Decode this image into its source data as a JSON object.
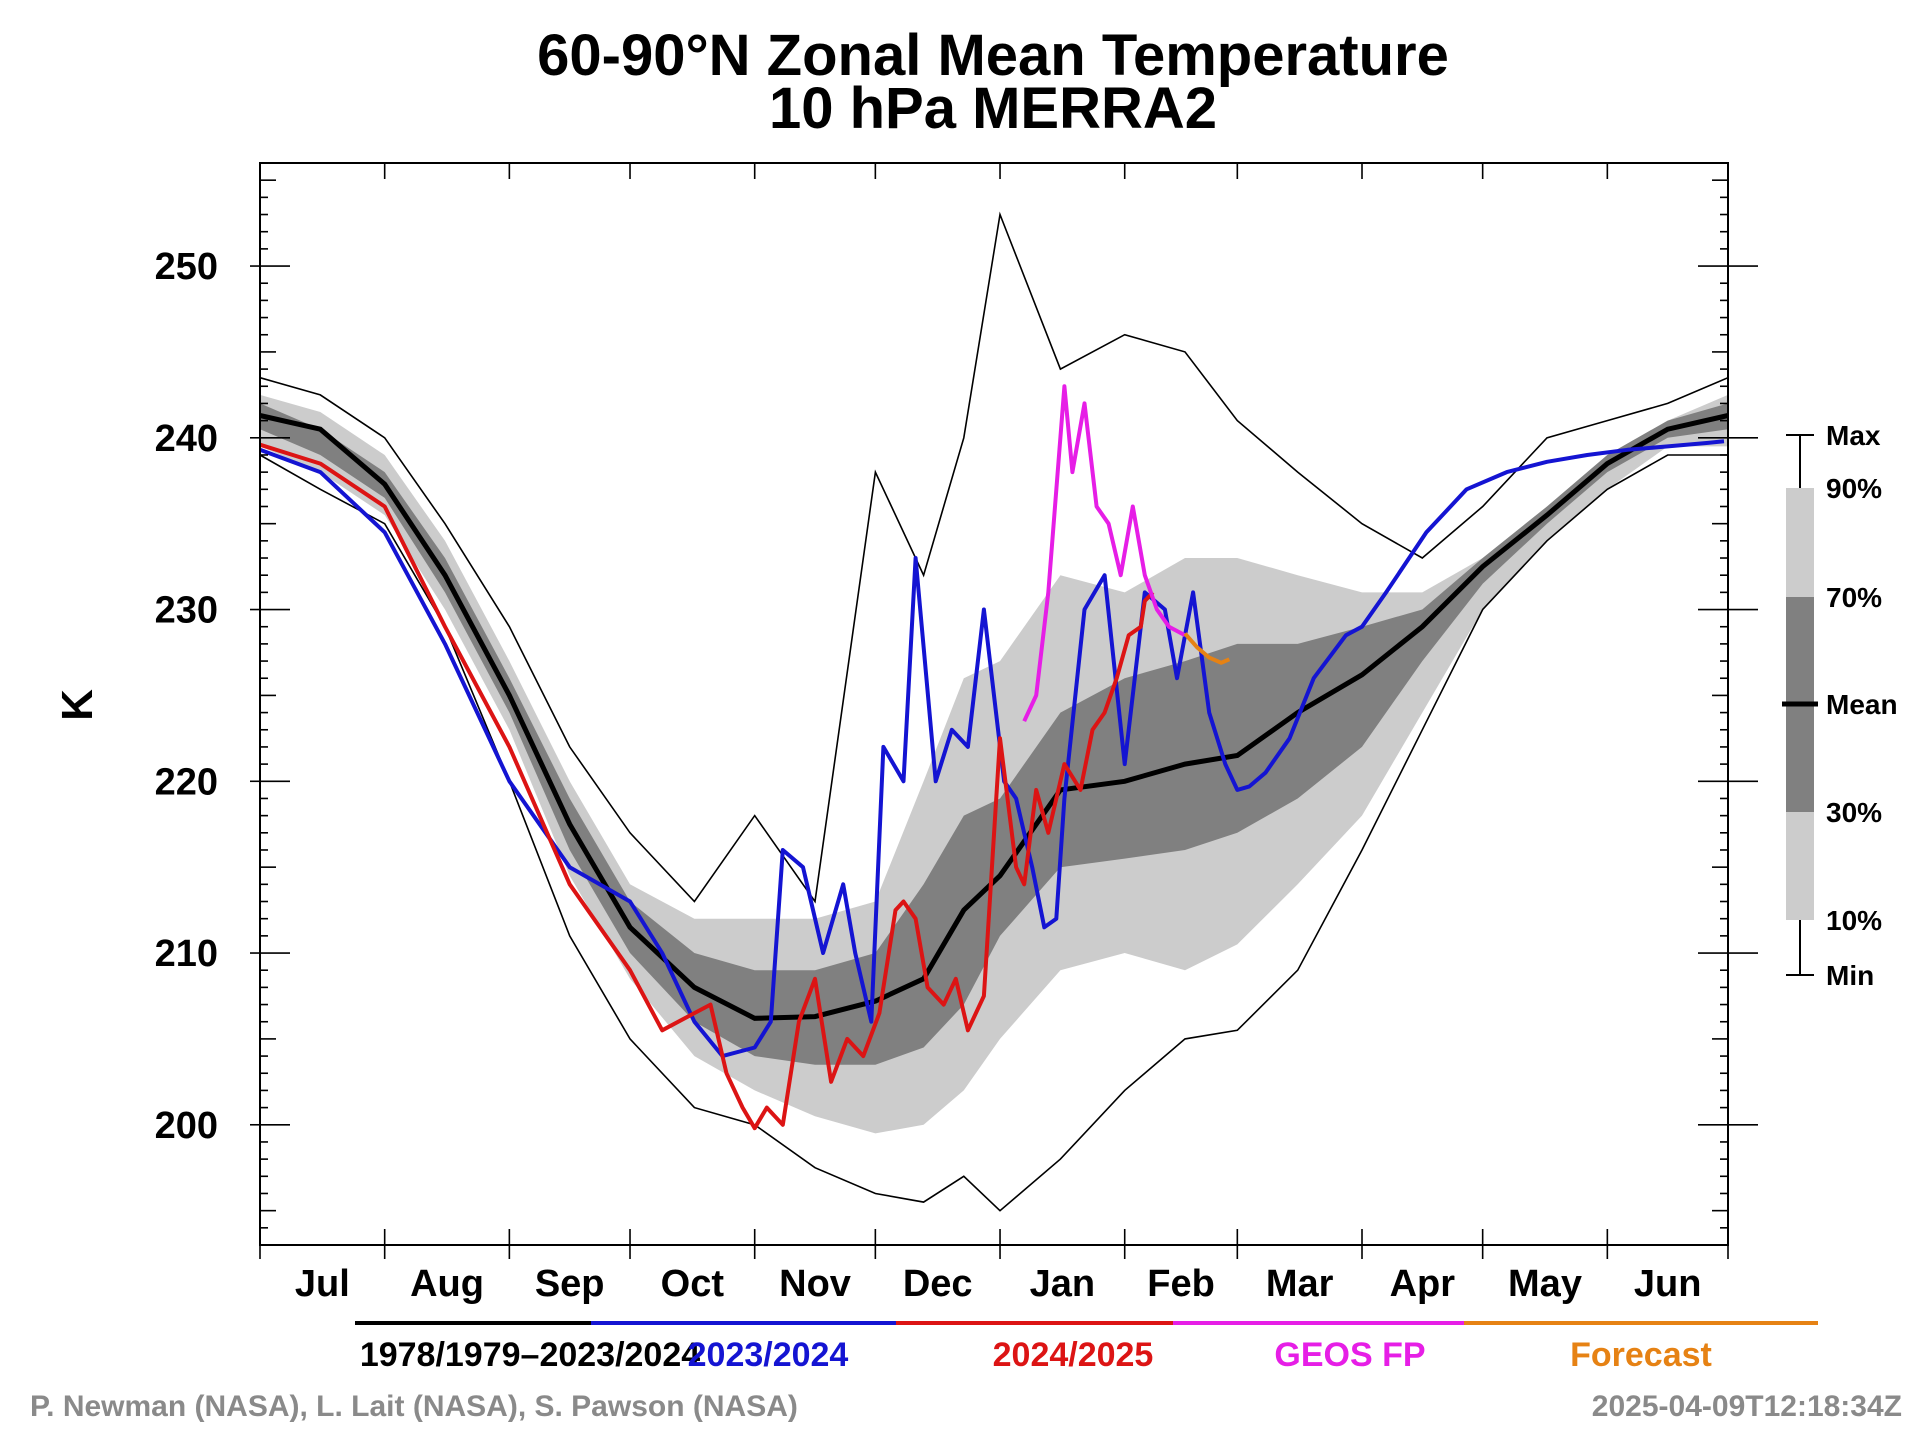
{
  "chart_data": {
    "type": "line",
    "title": "60-90°N Zonal Mean Temperature",
    "subtitle": "10 hPa   MERRA2",
    "ylabel": "K",
    "xlabel": "",
    "ylim": [
      193,
      256
    ],
    "yticks": [
      200,
      210,
      220,
      230,
      240,
      250
    ],
    "xlim": [
      0,
      365
    ],
    "x_units": "days since 1 Jul",
    "months": [
      "Jul",
      "Aug",
      "Sep",
      "Oct",
      "Nov",
      "Dec",
      "Jan",
      "Feb",
      "Mar",
      "Apr",
      "May",
      "Jun"
    ],
    "month_starts": [
      0,
      31,
      62,
      92,
      123,
      153,
      184,
      215,
      243,
      274,
      304,
      335,
      365
    ],
    "climatology": {
      "x": [
        0,
        15,
        31,
        46,
        62,
        77,
        92,
        108,
        123,
        138,
        153,
        165,
        175,
        184,
        199,
        215,
        230,
        243,
        258,
        274,
        289,
        304,
        320,
        335,
        350,
        365
      ],
      "max": [
        243.5,
        242.5,
        240,
        235,
        229,
        222,
        217,
        213,
        218,
        213,
        238,
        232,
        240,
        253,
        244,
        246,
        245,
        241,
        238,
        235,
        233,
        236,
        240,
        241,
        242,
        243.5
      ],
      "p90": [
        242.5,
        241.5,
        239,
        234,
        227,
        220,
        214,
        212,
        212,
        212,
        213,
        220,
        226,
        227,
        232,
        231,
        233,
        233,
        232,
        231,
        231,
        233,
        236,
        239,
        241,
        242.5
      ],
      "p70": [
        242,
        240.5,
        238,
        233,
        226,
        219,
        213,
        210,
        209,
        209,
        210,
        214,
        218,
        219,
        224,
        226,
        227,
        228,
        228,
        229,
        230,
        233,
        236,
        239,
        241,
        242
      ],
      "mean": [
        241.3,
        240.5,
        237.3,
        232,
        225,
        217.5,
        211.5,
        208,
        206.2,
        206.3,
        207.2,
        208.5,
        212.5,
        214.5,
        219.5,
        220,
        221,
        221.5,
        224,
        226.2,
        229,
        232.5,
        235.5,
        238.5,
        240.5,
        241.3
      ],
      "p30": [
        240.5,
        239,
        236.5,
        231,
        224,
        216,
        210,
        206,
        204,
        203.5,
        203.5,
        204.5,
        207,
        211,
        215,
        215.5,
        216,
        217,
        219,
        222,
        227,
        231.5,
        235,
        238,
        240,
        240.5
      ],
      "p10": [
        239.5,
        238,
        235.5,
        230,
        223,
        214.5,
        208.5,
        204,
        202,
        200.5,
        199.5,
        200,
        202,
        205,
        209,
        210,
        209,
        210.5,
        214,
        218,
        224,
        230,
        234,
        237,
        239.5,
        239.5
      ],
      "min": [
        239,
        237,
        235,
        229,
        220,
        211,
        205,
        201,
        200,
        197.5,
        196,
        195.5,
        197,
        195,
        198,
        202,
        205,
        205.5,
        209,
        216,
        223,
        230,
        234,
        237,
        239,
        239
      ]
    },
    "series": [
      {
        "name": "1978/1979–2023/2024",
        "color": "#000000"
      },
      {
        "name": "2023/2024",
        "color": "#1414d2",
        "x": [
          0,
          15,
          31,
          46,
          62,
          77,
          92,
          100,
          108,
          115,
          123,
          127,
          130,
          135,
          140,
          145,
          148,
          152,
          155,
          160,
          163,
          168,
          172,
          176,
          180,
          185,
          188,
          192,
          195,
          198,
          200,
          205,
          210,
          215,
          220,
          225,
          228,
          232,
          236,
          240,
          243,
          246,
          250,
          256,
          262,
          270,
          274,
          280,
          290,
          300,
          310,
          320,
          330,
          340,
          350,
          360,
          364
        ],
        "y": [
          239.3,
          238,
          234.5,
          228,
          220,
          215,
          213,
          210,
          206,
          204,
          204.5,
          206,
          216,
          215,
          210,
          214,
          210,
          206,
          222,
          220,
          233,
          220,
          223,
          222,
          230,
          220,
          219,
          215,
          211.5,
          212,
          219,
          230,
          232,
          221,
          231,
          230,
          226,
          231,
          224,
          221,
          219.5,
          219.7,
          220.5,
          222.5,
          226,
          228.5,
          229,
          231,
          234.5,
          237,
          238,
          238.6,
          239,
          239.3,
          239.5,
          239.7,
          239.8
        ]
      },
      {
        "name": "2024/2025",
        "color": "#dc1414",
        "x": [
          0,
          15,
          31,
          46,
          62,
          77,
          92,
          100,
          108,
          112,
          116,
          120,
          123,
          126,
          130,
          134,
          138,
          142,
          146,
          150,
          154,
          158,
          160,
          163,
          166,
          170,
          173,
          176,
          180,
          184,
          188,
          190,
          193,
          196,
          200,
          204,
          207,
          210,
          213,
          216,
          219,
          220,
          222
        ],
        "y": [
          239.6,
          238.5,
          236,
          229,
          222,
          214,
          209,
          205.5,
          206.5,
          207,
          203,
          201,
          199.8,
          201,
          200,
          206,
          208.5,
          202.5,
          205,
          204,
          206.5,
          212.5,
          213,
          212,
          208,
          207,
          208.5,
          205.5,
          207.5,
          222.5,
          215,
          214,
          219.5,
          217,
          221,
          219.5,
          223,
          224,
          226,
          228.5,
          229,
          230.5,
          231
        ]
      },
      {
        "name": "GEOS FP",
        "color": "#e61ee6",
        "x": [
          190,
          193,
          196,
          200,
          202,
          205,
          208,
          211,
          214,
          217,
          220,
          223,
          226,
          230
        ],
        "y": [
          223.5,
          225,
          231,
          243,
          238,
          242,
          236,
          235,
          232,
          236,
          232,
          230,
          229,
          228.5
        ]
      },
      {
        "name": "Forecast",
        "color": "#e68214",
        "x": [
          230,
          233,
          236,
          239,
          241
        ],
        "y": [
          228.6,
          227.8,
          227.2,
          226.9,
          227.1
        ]
      }
    ],
    "band_legend": {
      "labels": [
        "Max",
        "90%",
        "70%",
        "Mean",
        "30%",
        "10%",
        "Min"
      ]
    },
    "band_colors": {
      "outer": "#cccccc",
      "inner": "#808080"
    }
  },
  "credit": "P. Newman (NASA), L. Lait (NASA), S. Pawson (NASA)",
  "timestamp": "2025-04-09T12:18:34Z"
}
